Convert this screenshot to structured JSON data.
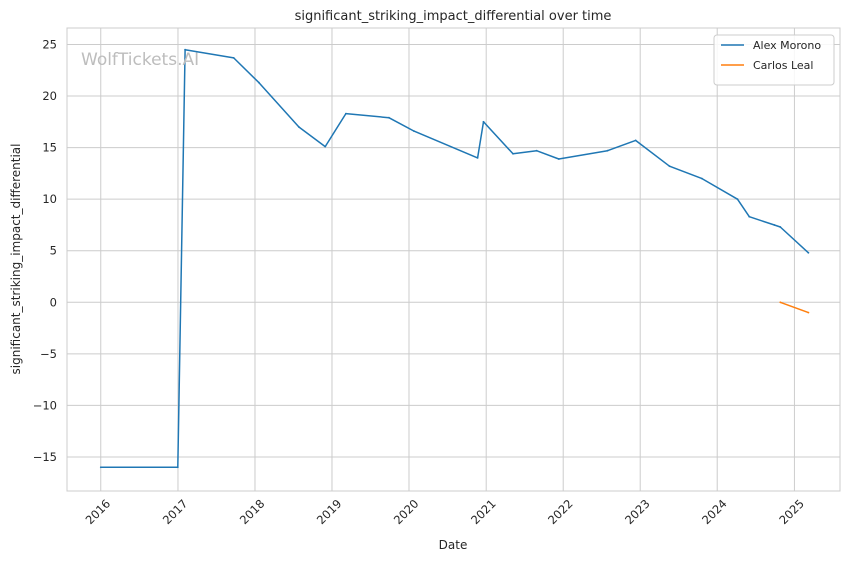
{
  "chart_data": {
    "type": "line",
    "title": "significant_striking_impact_differential over time",
    "xlabel": "Date",
    "ylabel": "significant_striking_impact_differential",
    "watermark": "WolfTickets.AI",
    "x_ticks": [
      "2016",
      "2017",
      "2018",
      "2019",
      "2020",
      "2021",
      "2022",
      "2023",
      "2024",
      "2025"
    ],
    "y_ticks": [
      -15,
      -10,
      -5,
      0,
      5,
      10,
      15,
      20,
      25
    ],
    "xlim": [
      "2015-07-25",
      "2025-08-05"
    ],
    "ylim": [
      -18.3,
      26.6
    ],
    "grid": true,
    "legend_position": "top-right",
    "series": [
      {
        "name": "Alex Morono",
        "color": "#1f77b4",
        "points": [
          [
            "2016-01-01",
            -16.0
          ],
          [
            "2016-12-31",
            -16.0
          ],
          [
            "2017-02-04",
            24.5
          ],
          [
            "2017-09-22",
            23.7
          ],
          [
            "2018-01-20",
            21.3
          ],
          [
            "2018-07-28",
            17.0
          ],
          [
            "2018-11-30",
            15.1
          ],
          [
            "2019-03-08",
            18.3
          ],
          [
            "2019-09-28",
            17.9
          ],
          [
            "2020-01-25",
            16.6
          ],
          [
            "2020-11-21",
            14.0
          ],
          [
            "2020-12-19",
            17.5
          ],
          [
            "2021-05-08",
            14.4
          ],
          [
            "2021-08-28",
            14.7
          ],
          [
            "2021-12-11",
            13.9
          ],
          [
            "2022-07-30",
            14.7
          ],
          [
            "2022-12-10",
            15.7
          ],
          [
            "2023-05-20",
            13.2
          ],
          [
            "2023-10-21",
            12.0
          ],
          [
            "2024-04-06",
            10.0
          ],
          [
            "2024-06-01",
            8.3
          ],
          [
            "2024-09-28",
            7.5
          ],
          [
            "2024-10-26",
            7.3
          ],
          [
            "2025-03-08",
            4.8
          ]
        ]
      },
      {
        "name": "Carlos Leal",
        "color": "#ff7f0e",
        "points": [
          [
            "2024-10-26",
            0.0
          ],
          [
            "2025-03-08",
            -1.0
          ]
        ]
      }
    ]
  }
}
